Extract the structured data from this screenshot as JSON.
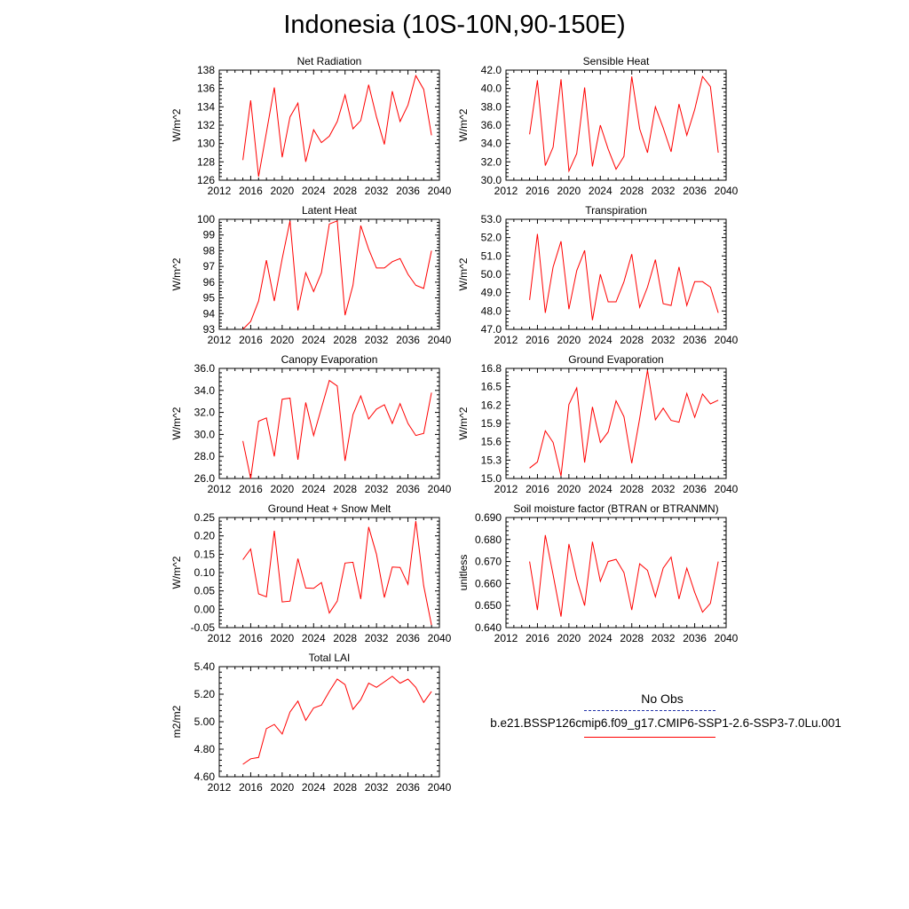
{
  "title": "Indonesia (10S-10N,90-150E)",
  "colors": {
    "series": "#ff0000",
    "obs": "#2233aa",
    "axis": "#000000"
  },
  "legend": {
    "obs_label": "No Obs",
    "case_label": "b.e21.BSSP126cmip6.f09_g17.CMIP6-SSP1-2.6-SSP3-7.0Lu.001"
  },
  "chart_data": [
    {
      "type": "line",
      "title": "Net Radiation",
      "ylabel": "W/m^2",
      "xlim": [
        2012,
        2040
      ],
      "ylim": [
        126,
        138
      ],
      "xticks": [
        2012,
        2016,
        2020,
        2024,
        2028,
        2032,
        2036,
        2040
      ],
      "yticks": [
        "126",
        "128",
        "130",
        "132",
        "134",
        "136",
        "138"
      ],
      "grid": false,
      "series": [
        {
          "x": [
            2015,
            2016,
            2017,
            2018,
            2019,
            2020,
            2021,
            2022,
            2023,
            2024,
            2025,
            2026,
            2027,
            2028,
            2029,
            2030,
            2031,
            2032,
            2033,
            2034,
            2035,
            2036,
            2037,
            2038,
            2039
          ],
          "y": [
            128.2,
            134.7,
            126.4,
            131.2,
            136.1,
            128.5,
            132.9,
            134.4,
            128.0,
            131.5,
            130.1,
            130.8,
            132.4,
            135.3,
            131.6,
            132.5,
            136.4,
            132.9,
            129.9,
            135.7,
            132.4,
            134.2,
            137.4,
            135.9,
            130.9
          ]
        }
      ]
    },
    {
      "type": "line",
      "title": "Sensible Heat",
      "ylabel": "W/m^2",
      "xlim": [
        2012,
        2040
      ],
      "ylim": [
        30,
        42
      ],
      "xticks": [
        2012,
        2016,
        2020,
        2024,
        2028,
        2032,
        2036,
        2040
      ],
      "yticks": [
        "30.0",
        "32.0",
        "34.0",
        "36.0",
        "38.0",
        "40.0",
        "42.0"
      ],
      "grid": false,
      "series": [
        {
          "x": [
            2015,
            2016,
            2017,
            2018,
            2019,
            2020,
            2021,
            2022,
            2023,
            2024,
            2025,
            2026,
            2027,
            2028,
            2029,
            2030,
            2031,
            2032,
            2033,
            2034,
            2035,
            2036,
            2037,
            2038,
            2039
          ],
          "y": [
            35.0,
            40.9,
            31.6,
            33.6,
            41.0,
            31.0,
            32.9,
            40.1,
            31.5,
            36.0,
            33.4,
            31.2,
            32.6,
            41.3,
            35.6,
            33.0,
            38.0,
            35.7,
            33.1,
            38.3,
            34.9,
            37.7,
            41.3,
            40.2,
            33.0
          ]
        }
      ]
    },
    {
      "type": "line",
      "title": "Latent Heat",
      "ylabel": "W/m^2",
      "xlim": [
        2012,
        2040
      ],
      "ylim": [
        93,
        100
      ],
      "xticks": [
        2012,
        2016,
        2020,
        2024,
        2028,
        2032,
        2036,
        2040
      ],
      "yticks": [
        "93",
        "94",
        "95",
        "96",
        "97",
        "98",
        "99",
        "100"
      ],
      "grid": false,
      "series": [
        {
          "x": [
            2015,
            2016,
            2017,
            2018,
            2019,
            2020,
            2021,
            2022,
            2023,
            2024,
            2025,
            2026,
            2027,
            2028,
            2029,
            2030,
            2031,
            2032,
            2033,
            2034,
            2035,
            2036,
            2037,
            2038,
            2039
          ],
          "y": [
            93.0,
            93.5,
            94.8,
            97.4,
            94.8,
            97.5,
            99.9,
            94.2,
            96.6,
            95.4,
            96.6,
            99.7,
            99.9,
            93.9,
            95.8,
            99.6,
            98.1,
            96.9,
            96.9,
            97.3,
            97.5,
            96.5,
            95.8,
            95.6,
            98.0
          ]
        }
      ]
    },
    {
      "type": "line",
      "title": "Transpiration",
      "ylabel": "W/m^2",
      "xlim": [
        2012,
        2040
      ],
      "ylim": [
        47,
        53
      ],
      "xticks": [
        2012,
        2016,
        2020,
        2024,
        2028,
        2032,
        2036,
        2040
      ],
      "yticks": [
        "47.0",
        "48.0",
        "49.0",
        "50.0",
        "51.0",
        "52.0",
        "53.0"
      ],
      "grid": false,
      "series": [
        {
          "x": [
            2015,
            2016,
            2017,
            2018,
            2019,
            2020,
            2021,
            2022,
            2023,
            2024,
            2025,
            2026,
            2027,
            2028,
            2029,
            2030,
            2031,
            2032,
            2033,
            2034,
            2035,
            2036,
            2037,
            2038,
            2039
          ],
          "y": [
            48.6,
            52.2,
            47.9,
            50.4,
            51.8,
            48.1,
            50.2,
            51.3,
            47.5,
            50.0,
            48.5,
            48.5,
            49.6,
            51.1,
            48.2,
            49.3,
            50.8,
            48.4,
            48.3,
            50.4,
            48.3,
            49.6,
            49.6,
            49.3,
            47.9
          ]
        }
      ]
    },
    {
      "type": "line",
      "title": "Canopy Evaporation",
      "ylabel": "W/m^2",
      "xlim": [
        2012,
        2040
      ],
      "ylim": [
        26,
        36
      ],
      "xticks": [
        2012,
        2016,
        2020,
        2024,
        2028,
        2032,
        2036,
        2040
      ],
      "yticks": [
        "26.0",
        "28.0",
        "30.0",
        "32.0",
        "34.0",
        "36.0"
      ],
      "grid": false,
      "series": [
        {
          "x": [
            2015,
            2016,
            2017,
            2018,
            2019,
            2020,
            2021,
            2022,
            2023,
            2024,
            2025,
            2026,
            2027,
            2028,
            2029,
            2030,
            2031,
            2032,
            2033,
            2034,
            2035,
            2036,
            2037,
            2038,
            2039
          ],
          "y": [
            29.4,
            26.0,
            31.2,
            31.5,
            28.0,
            33.2,
            33.3,
            27.7,
            32.9,
            29.9,
            32.4,
            34.9,
            34.4,
            27.6,
            31.8,
            33.5,
            31.4,
            32.3,
            32.7,
            31.0,
            32.8,
            31.0,
            29.9,
            30.1,
            33.8
          ]
        }
      ]
    },
    {
      "type": "line",
      "title": "Ground Evaporation",
      "ylabel": "W/m^2",
      "xlim": [
        2012,
        2040
      ],
      "ylim": [
        15.0,
        16.8
      ],
      "xticks": [
        2012,
        2016,
        2020,
        2024,
        2028,
        2032,
        2036,
        2040
      ],
      "yticks": [
        "15.0",
        "15.3",
        "15.6",
        "15.9",
        "16.2",
        "16.5",
        "16.8"
      ],
      "grid": false,
      "series": [
        {
          "x": [
            2015,
            2016,
            2017,
            2018,
            2019,
            2020,
            2021,
            2022,
            2023,
            2024,
            2025,
            2026,
            2027,
            2028,
            2029,
            2030,
            2031,
            2032,
            2033,
            2034,
            2035,
            2036,
            2037,
            2038,
            2039
          ],
          "y": [
            15.17,
            15.27,
            15.78,
            15.59,
            15.04,
            16.21,
            16.48,
            15.26,
            16.17,
            15.59,
            15.76,
            16.27,
            16.01,
            15.25,
            15.98,
            16.77,
            15.96,
            16.15,
            15.95,
            15.92,
            16.39,
            16.0,
            16.38,
            16.22,
            16.28
          ]
        }
      ]
    },
    {
      "type": "line",
      "title": "Ground Heat + Snow Melt",
      "ylabel": "W/m^2",
      "xlim": [
        2012,
        2040
      ],
      "ylim": [
        -0.05,
        0.25
      ],
      "xticks": [
        2012,
        2016,
        2020,
        2024,
        2028,
        2032,
        2036,
        2040
      ],
      "yticks": [
        "-0.05",
        "0.00",
        "0.05",
        "0.10",
        "0.15",
        "0.20",
        "0.25"
      ],
      "grid": false,
      "series": [
        {
          "x": [
            2015,
            2016,
            2017,
            2018,
            2019,
            2020,
            2021,
            2022,
            2023,
            2024,
            2025,
            2026,
            2027,
            2028,
            2029,
            2030,
            2031,
            2032,
            2033,
            2034,
            2035,
            2036,
            2037,
            2038,
            2039
          ],
          "y": [
            0.135,
            0.164,
            0.042,
            0.034,
            0.214,
            0.02,
            0.022,
            0.138,
            0.058,
            0.057,
            0.073,
            -0.01,
            0.022,
            0.126,
            0.128,
            0.028,
            0.224,
            0.15,
            0.032,
            0.115,
            0.114,
            0.068,
            0.24,
            0.064,
            -0.043
          ]
        }
      ]
    },
    {
      "type": "line",
      "title": "Soil moisture factor (BTRAN or BTRANMN)",
      "ylabel": "unitless",
      "xlim": [
        2012,
        2040
      ],
      "ylim": [
        0.64,
        0.69
      ],
      "xticks": [
        2012,
        2016,
        2020,
        2024,
        2028,
        2032,
        2036,
        2040
      ],
      "yticks": [
        "0.640",
        "0.650",
        "0.660",
        "0.670",
        "0.680",
        "0.690"
      ],
      "grid": false,
      "series": [
        {
          "x": [
            2015,
            2016,
            2017,
            2018,
            2019,
            2020,
            2021,
            2022,
            2023,
            2024,
            2025,
            2026,
            2027,
            2028,
            2029,
            2030,
            2031,
            2032,
            2033,
            2034,
            2035,
            2036,
            2037,
            2038,
            2039
          ],
          "y": [
            0.67,
            0.648,
            0.682,
            0.664,
            0.645,
            0.678,
            0.662,
            0.65,
            0.679,
            0.661,
            0.67,
            0.671,
            0.665,
            0.648,
            0.669,
            0.666,
            0.654,
            0.667,
            0.672,
            0.653,
            0.667,
            0.656,
            0.647,
            0.651,
            0.67
          ]
        }
      ]
    },
    {
      "type": "line",
      "title": "Total LAI",
      "ylabel": "m2/m2",
      "xlim": [
        2012,
        2040
      ],
      "ylim": [
        4.6,
        5.4
      ],
      "xticks": [
        2012,
        2016,
        2020,
        2024,
        2028,
        2032,
        2036,
        2040
      ],
      "yticks": [
        "4.60",
        "4.80",
        "5.00",
        "5.20",
        "5.40"
      ],
      "grid": false,
      "series": [
        {
          "x": [
            2015,
            2016,
            2017,
            2018,
            2019,
            2020,
            2021,
            2022,
            2023,
            2024,
            2025,
            2026,
            2027,
            2028,
            2029,
            2030,
            2031,
            2032,
            2033,
            2034,
            2035,
            2036,
            2037,
            2038,
            2039
          ],
          "y": [
            4.69,
            4.73,
            4.74,
            4.95,
            4.98,
            4.91,
            5.07,
            5.15,
            5.01,
            5.1,
            5.12,
            5.22,
            5.31,
            5.27,
            5.09,
            5.16,
            5.28,
            5.25,
            5.29,
            5.33,
            5.28,
            5.31,
            5.25,
            5.14,
            5.22
          ]
        }
      ]
    }
  ]
}
